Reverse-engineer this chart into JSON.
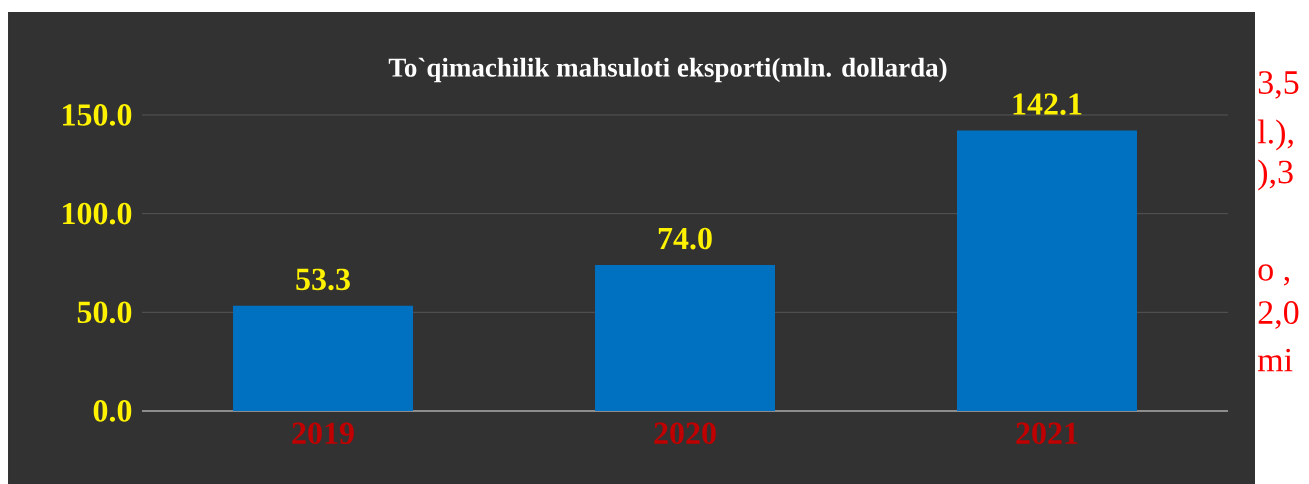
{
  "chart_data": {
    "type": "bar",
    "title": "To`qimachilik mahsuloti eksporti(mln. dollarda)",
    "categories": [
      "2019",
      "2020",
      "2021"
    ],
    "values": [
      53.3,
      74.0,
      142.1
    ],
    "value_labels": [
      "53.3",
      "74.0",
      "142.1"
    ],
    "color": "#0070c0",
    "ylim": [
      0,
      150
    ],
    "yticks": [
      {
        "value": 0,
        "label": "0.0"
      },
      {
        "value": 50,
        "label": "50.0"
      },
      {
        "value": 100,
        "label": "100.0"
      },
      {
        "value": 150,
        "label": "150.0"
      }
    ],
    "grid": "y",
    "annotations": [
      "3,5",
      "l.),",
      "),3",
      "o ,",
      "2,0",
      "mi"
    ]
  }
}
